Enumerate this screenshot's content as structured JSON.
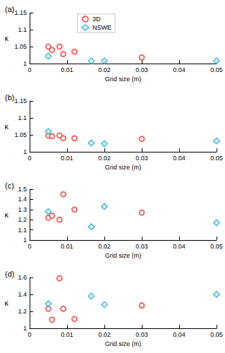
{
  "chart_data": [
    {
      "type": "scatter",
      "title": "(a)",
      "x_label": "Grid size (m)",
      "y_label": "κ",
      "xlim": [
        0,
        0.05
      ],
      "xticks": [
        0,
        0.01,
        0.02,
        0.03,
        0.04,
        0.05
      ],
      "ylim": [
        1,
        1.15
      ],
      "yticks": [
        1,
        1.05,
        1.1,
        1.15
      ],
      "grid": false,
      "legend": "top",
      "series": [
        {
          "name": "3D",
          "color": "#e8473f",
          "marker": "circle",
          "x": [
            0.005,
            0.006,
            0.008,
            0.009,
            0.012,
            0.03
          ],
          "values": [
            1.05,
            1.04,
            1.05,
            1.028,
            1.035,
            1.018
          ]
        },
        {
          "name": "NSWE",
          "color": "#3ab5d9",
          "marker": "diamond",
          "x": [
            0.005,
            0.0165,
            0.02,
            0.05
          ],
          "values": [
            1.022,
            1.008,
            1.008,
            1.008
          ]
        }
      ]
    },
    {
      "type": "scatter",
      "title": "(b)",
      "x_label": "Grid size (m)",
      "y_label": "κ",
      "xlim": [
        0,
        0.05
      ],
      "xticks": [
        0,
        0.01,
        0.02,
        0.03,
        0.04,
        0.05
      ],
      "ylim": [
        1,
        1.15
      ],
      "yticks": [
        1,
        1.05,
        1.1,
        1.15
      ],
      "grid": false,
      "series": [
        {
          "name": "3D",
          "color": "#e8473f",
          "marker": "circle",
          "x": [
            0.005,
            0.006,
            0.008,
            0.009,
            0.012,
            0.03
          ],
          "values": [
            1.048,
            1.046,
            1.048,
            1.04,
            1.04,
            1.038
          ]
        },
        {
          "name": "NSWE",
          "color": "#3ab5d9",
          "marker": "diamond",
          "x": [
            0.005,
            0.0165,
            0.02,
            0.05
          ],
          "values": [
            1.06,
            1.026,
            1.024,
            1.032
          ]
        }
      ]
    },
    {
      "type": "scatter",
      "title": "(c)",
      "x_label": "Grid size (m)",
      "y_label": "κ",
      "xlim": [
        0,
        0.05
      ],
      "xticks": [
        0,
        0.01,
        0.02,
        0.03,
        0.04,
        0.05
      ],
      "ylim": [
        1,
        1.5
      ],
      "yticks": [
        1,
        1.1,
        1.2,
        1.3,
        1.4,
        1.5
      ],
      "grid": false,
      "series": [
        {
          "name": "3D",
          "color": "#e8473f",
          "marker": "circle",
          "x": [
            0.005,
            0.006,
            0.008,
            0.009,
            0.012,
            0.03
          ],
          "values": [
            1.22,
            1.24,
            1.2,
            1.45,
            1.3,
            1.27
          ]
        },
        {
          "name": "NSWE",
          "color": "#3ab5d9",
          "marker": "diamond",
          "x": [
            0.005,
            0.0165,
            0.02,
            0.05
          ],
          "values": [
            1.28,
            1.13,
            1.33,
            1.17
          ]
        }
      ]
    },
    {
      "type": "scatter",
      "title": "(d)",
      "x_label": "Grid size (m)",
      "y_label": "κ",
      "xlim": [
        0,
        0.05
      ],
      "xticks": [
        0,
        0.01,
        0.02,
        0.03,
        0.04,
        0.05
      ],
      "ylim": [
        1,
        1.6
      ],
      "yticks": [
        1,
        1.2,
        1.4,
        1.6
      ],
      "grid": false,
      "series": [
        {
          "name": "3D",
          "color": "#e8473f",
          "marker": "circle",
          "x": [
            0.005,
            0.006,
            0.008,
            0.009,
            0.012,
            0.03
          ],
          "values": [
            1.23,
            1.1,
            1.59,
            1.23,
            1.11,
            1.27
          ]
        },
        {
          "name": "NSWE",
          "color": "#3ab5d9",
          "marker": "diamond",
          "x": [
            0.005,
            0.0165,
            0.02,
            0.05
          ],
          "values": [
            1.29,
            1.38,
            1.28,
            1.4
          ]
        }
      ]
    }
  ]
}
